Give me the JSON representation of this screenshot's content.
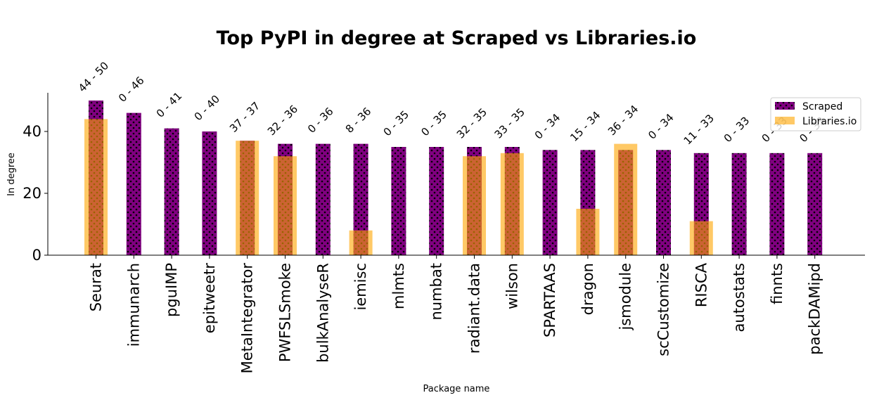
{
  "chart_data": {
    "type": "bar",
    "title": "Top PyPI in degree at Scraped vs Libraries.io",
    "xlabel": "Package name",
    "ylabel": "In degree",
    "ylim": [
      0,
      52
    ],
    "yticks": [
      0,
      20,
      40
    ],
    "categories": [
      "Seurat",
      "immunarch",
      "pguIMP",
      "epitweetr",
      "MetaIntegrator",
      "PWFSLSmoke",
      "bulkAnalyseR",
      "iemisc",
      "mlmts",
      "numbat",
      "radiant.data",
      "wilson",
      "SPARTAAS",
      "dragon",
      "jsmodule",
      "scCustomize",
      "RISCA",
      "autostats",
      "finnts",
      "packDAMipd"
    ],
    "series": [
      {
        "name": "Scraped",
        "color": "#800080",
        "pattern": "dots",
        "values": [
          50,
          46,
          41,
          40,
          37,
          36,
          36,
          36,
          35,
          35,
          35,
          35,
          34,
          34,
          34,
          34,
          33,
          33,
          33,
          33
        ]
      },
      {
        "name": "Libraries.io",
        "color": "#FFA500",
        "opacity": 0.6,
        "values": [
          44,
          0,
          0,
          0,
          37,
          32,
          0,
          8,
          0,
          0,
          32,
          33,
          0,
          15,
          36,
          0,
          11,
          0,
          0,
          0
        ]
      }
    ],
    "annotations": [
      "44 - 50",
      "0 - 46",
      "0 - 41",
      "0 - 40",
      "37 - 37",
      "32 - 36",
      "0 - 36",
      "8 - 36",
      "0 - 35",
      "0 - 35",
      "32 - 35",
      "33 - 35",
      "0 - 34",
      "15 - 34",
      "36 - 34",
      "0 - 34",
      "11 - 33",
      "0 - 33",
      "0 - 33",
      "0 - 33"
    ],
    "legend": {
      "placement": "top-right",
      "entries": [
        "Scraped",
        "Libraries.io"
      ]
    },
    "grid": false
  }
}
